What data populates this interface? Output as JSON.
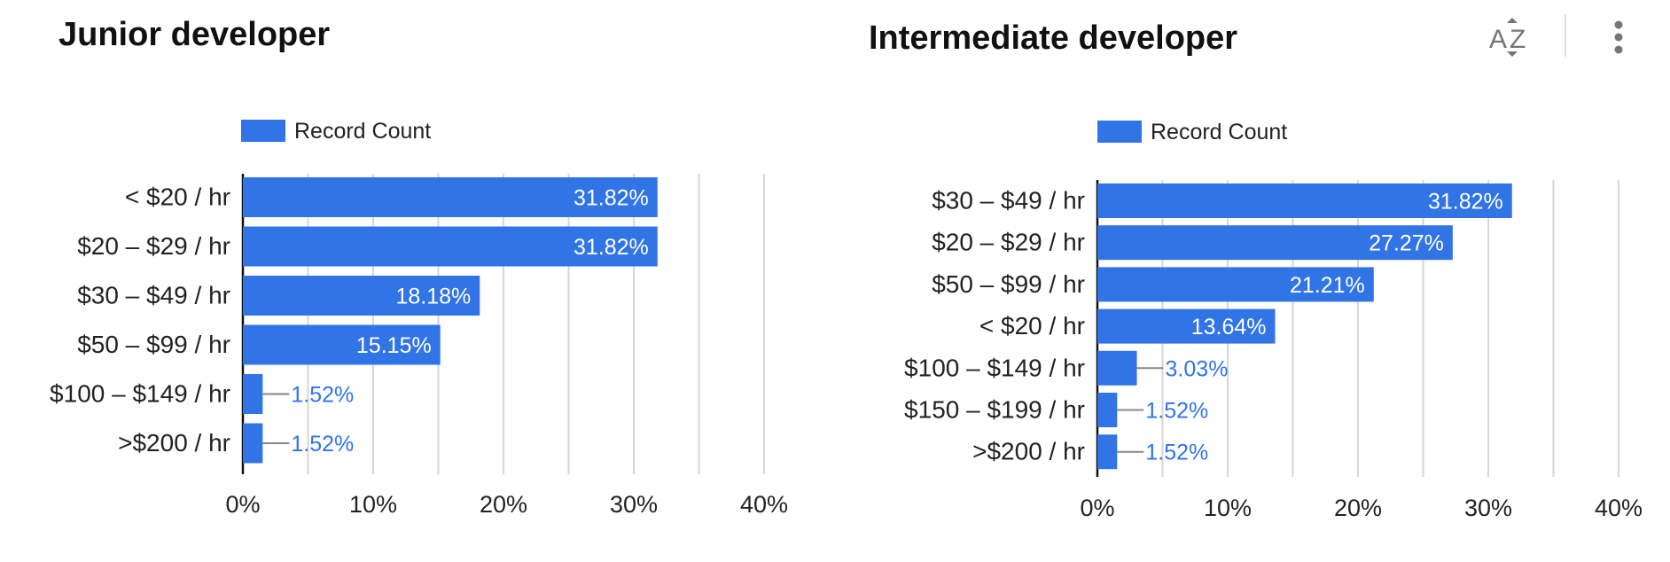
{
  "toolbar": {
    "sort_icon": "sort-az-icon",
    "more_icon": "more-vert-icon"
  },
  "colors": {
    "bar": "#3174e6",
    "grid": "#d6d6d6",
    "axis": "#111111",
    "outside_label": "#3174e6",
    "inside_label": "#ffffff"
  },
  "chart_data": [
    {
      "type": "bar",
      "orientation": "horizontal",
      "title": "Junior developer",
      "legend": [
        "Record Count"
      ],
      "legend_position": "top",
      "categories": [
        "< $20 / hr",
        "$20 – $29 / hr",
        "$30 – $49 / hr",
        "$50 – $99 / hr",
        "$100 – $149 / hr",
        ">$200 / hr"
      ],
      "series": [
        {
          "name": "Record Count",
          "values": [
            31.82,
            31.82,
            18.18,
            15.15,
            1.52,
            1.52
          ]
        }
      ],
      "value_labels": [
        "31.82%",
        "31.82%",
        "18.18%",
        "15.15%",
        "1.52%",
        "1.52%"
      ],
      "xlim": [
        0,
        40
      ],
      "xticks": [
        "0%",
        "10%",
        "20%",
        "30%",
        "40%"
      ],
      "grid": true
    },
    {
      "type": "bar",
      "orientation": "horizontal",
      "title": "Intermediate developer",
      "legend": [
        "Record Count"
      ],
      "legend_position": "top",
      "categories": [
        "$30 – $49 / hr",
        "$20 – $29 / hr",
        "$50 – $99 / hr",
        "< $20 / hr",
        "$100 – $149 / hr",
        "$150 – $199 / hr",
        ">$200 / hr"
      ],
      "series": [
        {
          "name": "Record Count",
          "values": [
            31.82,
            27.27,
            21.21,
            13.64,
            3.03,
            1.52,
            1.52
          ]
        }
      ],
      "value_labels": [
        "31.82%",
        "27.27%",
        "21.21%",
        "13.64%",
        "3.03%",
        "1.52%",
        "1.52%"
      ],
      "xlim": [
        0,
        40
      ],
      "xticks": [
        "0%",
        "10%",
        "20%",
        "30%",
        "40%"
      ],
      "grid": true
    }
  ]
}
